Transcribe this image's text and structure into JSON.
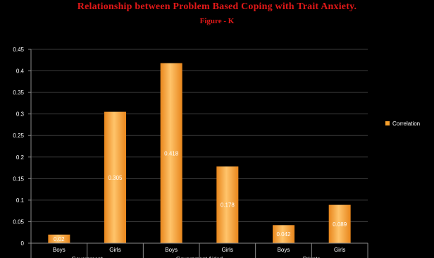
{
  "chart_data": {
    "type": "bar",
    "title": "Relationship between Problem Based Coping with Trait Anxiety.",
    "subtitle": "Figure - K",
    "categories": [
      "Boys",
      "Girls",
      "Boys",
      "Girls",
      "Boys",
      "Girls"
    ],
    "groups": [
      "Government",
      "Government Aided",
      "Private"
    ],
    "series": [
      {
        "name": "Correlation",
        "values": [
          0.02,
          0.305,
          0.418,
          0.178,
          0.042,
          0.089
        ],
        "labels": [
          "0.02",
          "0.305",
          "0.418",
          "0.178",
          "0.042",
          "0.089"
        ],
        "color": "#f7a02c"
      }
    ],
    "ylim": [
      0,
      0.45
    ],
    "yticks": [
      "0",
      "0.05",
      "0.1",
      "0.15",
      "0.2",
      "0.25",
      "0.3",
      "0.35",
      "0.4",
      "0.45"
    ],
    "xlabel": "",
    "ylabel": "",
    "legend_position": "right",
    "grid": true
  },
  "colors": {
    "background": "#000000",
    "title": "#e01818",
    "bar_light": "#ffc46b",
    "bar_dark": "#e8861c",
    "text": "#ffffff"
  }
}
